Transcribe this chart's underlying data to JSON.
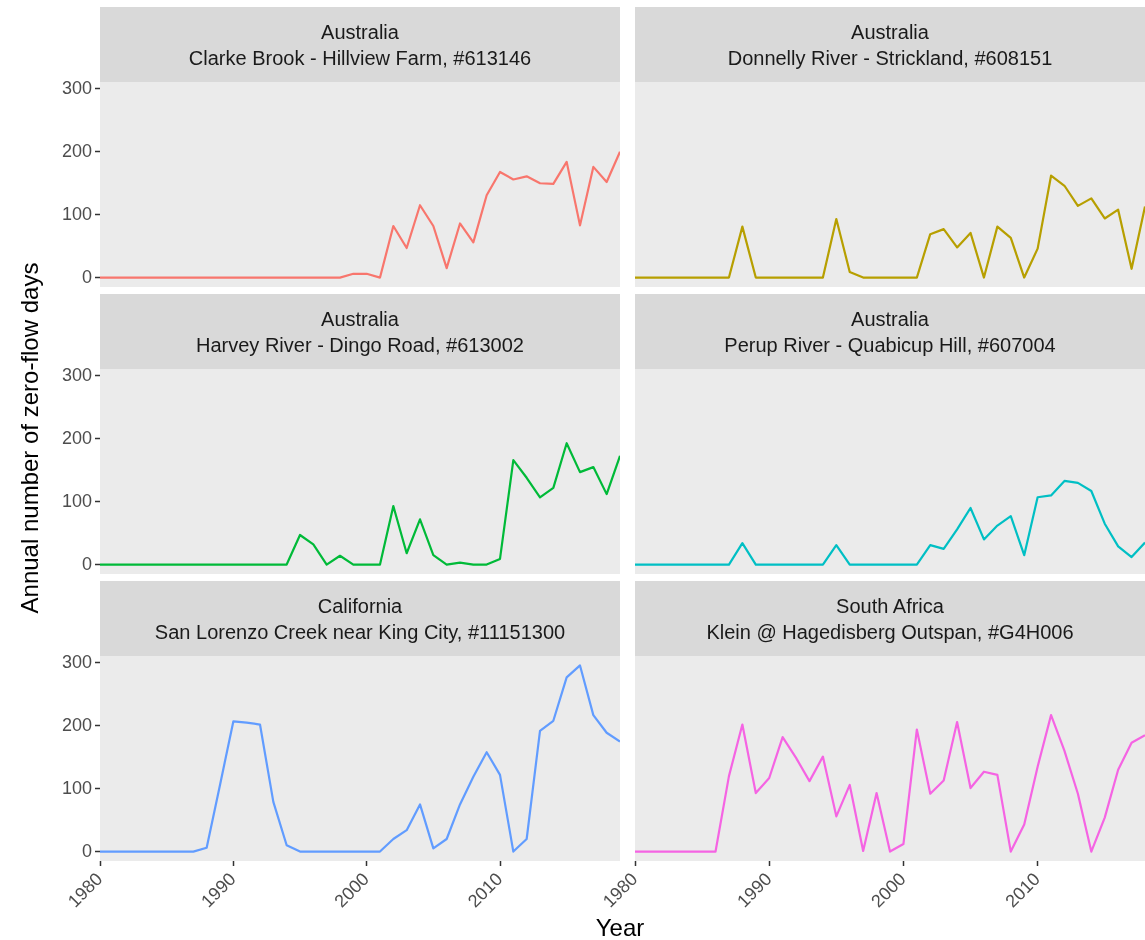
{
  "chart_data": [
    {
      "type": "line",
      "title": "Australia",
      "subtitle": "Clarke Brook - Hillview Farm, #613146",
      "x": [
        1980,
        1981,
        1982,
        1983,
        1984,
        1985,
        1986,
        1987,
        1988,
        1989,
        1990,
        1991,
        1992,
        1993,
        1994,
        1995,
        1996,
        1997,
        1998,
        1999,
        2000,
        2001,
        2002,
        2003,
        2004,
        2005,
        2006,
        2007,
        2008,
        2009,
        2010,
        2011,
        2012,
        2013,
        2014,
        2015,
        2016,
        2017,
        2018,
        2019
      ],
      "series": [
        {
          "color": "#f8766d",
          "values": [
            0,
            0,
            0,
            0,
            0,
            0,
            0,
            0,
            0,
            0,
            0,
            0,
            0,
            0,
            0,
            0,
            0,
            0,
            0,
            6,
            6,
            0,
            82,
            47,
            115,
            82,
            15,
            86,
            56,
            131,
            168,
            156,
            161,
            150,
            149,
            184,
            83,
            176,
            152,
            200
          ]
        }
      ],
      "xlim": [
        1980,
        2019
      ],
      "xticks": [
        1980,
        1990,
        2000,
        2010
      ],
      "ylim": [
        -15,
        311
      ],
      "yticks": [
        0,
        100,
        200,
        300
      ],
      "tick_labels": "y",
      "grid": false,
      "legend": false
    },
    {
      "type": "line",
      "title": "Australia",
      "subtitle": "Donnelly River - Strickland, #608151",
      "x": [
        1980,
        1981,
        1982,
        1983,
        1984,
        1985,
        1986,
        1987,
        1988,
        1989,
        1990,
        1991,
        1992,
        1993,
        1994,
        1995,
        1996,
        1997,
        1998,
        1999,
        2000,
        2001,
        2002,
        2003,
        2004,
        2005,
        2006,
        2007,
        2008,
        2009,
        2010,
        2011,
        2012,
        2013,
        2014,
        2015,
        2016,
        2017,
        2018
      ],
      "series": [
        {
          "color": "#b79f00",
          "values": [
            0,
            0,
            0,
            0,
            0,
            0,
            0,
            0,
            81,
            0,
            0,
            0,
            0,
            0,
            0,
            93,
            9,
            0,
            0,
            0,
            0,
            0,
            69,
            77,
            48,
            71,
            0,
            81,
            63,
            0,
            46,
            162,
            146,
            114,
            126,
            94,
            108,
            14,
            113
          ]
        }
      ],
      "xlim": [
        1980,
        2018
      ],
      "xticks": [
        1980,
        1990,
        2000,
        2010
      ],
      "ylim": [
        -15,
        311
      ],
      "yticks": [
        0,
        100,
        200,
        300
      ],
      "tick_labels": false,
      "grid": false,
      "legend": false
    },
    {
      "type": "line",
      "title": "Australia",
      "subtitle": "Harvey River - Dingo Road, #613002",
      "ylabel": "Annual number of zero-flow days",
      "x": [
        1980,
        1981,
        1982,
        1983,
        1984,
        1985,
        1986,
        1987,
        1988,
        1989,
        1990,
        1991,
        1992,
        1993,
        1994,
        1995,
        1996,
        1997,
        1998,
        1999,
        2000,
        2001,
        2002,
        2003,
        2004,
        2005,
        2006,
        2007,
        2008,
        2009,
        2010,
        2011,
        2012,
        2013,
        2014,
        2015,
        2016,
        2017,
        2018,
        2019
      ],
      "series": [
        {
          "color": "#00ba38",
          "values": [
            0,
            0,
            0,
            0,
            0,
            0,
            0,
            0,
            0,
            0,
            0,
            0,
            0,
            0,
            0,
            47,
            32,
            0,
            14,
            0,
            0,
            0,
            93,
            18,
            72,
            15,
            0,
            3,
            0,
            0,
            9,
            166,
            138,
            107,
            122,
            193,
            147,
            155,
            112,
            173
          ]
        }
      ],
      "xlim": [
        1980,
        2019
      ],
      "xticks": [
        1980,
        1990,
        2000,
        2010
      ],
      "ylim": [
        -15,
        311
      ],
      "yticks": [
        0,
        100,
        200,
        300
      ],
      "tick_labels": "y",
      "grid": false,
      "legend": false
    },
    {
      "type": "line",
      "title": "Australia",
      "subtitle": "Perup River - Quabicup Hill, #607004",
      "x": [
        1980,
        1981,
        1982,
        1983,
        1984,
        1985,
        1986,
        1987,
        1988,
        1989,
        1990,
        1991,
        1992,
        1993,
        1994,
        1995,
        1996,
        1997,
        1998,
        1999,
        2000,
        2001,
        2002,
        2003,
        2004,
        2005,
        2006,
        2007,
        2008,
        2009,
        2010,
        2011,
        2012,
        2013,
        2014,
        2015,
        2016,
        2017,
        2018
      ],
      "series": [
        {
          "color": "#00bfc4",
          "values": [
            0,
            0,
            0,
            0,
            0,
            0,
            0,
            0,
            34,
            0,
            0,
            0,
            0,
            0,
            0,
            31,
            0,
            0,
            0,
            0,
            0,
            0,
            31,
            25,
            56,
            90,
            40,
            62,
            77,
            15,
            107,
            110,
            133,
            130,
            117,
            65,
            29,
            12,
            35
          ]
        }
      ],
      "xlim": [
        1980,
        2018
      ],
      "xticks": [
        1980,
        1990,
        2000,
        2010
      ],
      "ylim": [
        -15,
        311
      ],
      "yticks": [
        0,
        100,
        200,
        300
      ],
      "tick_labels": false,
      "grid": false,
      "legend": false
    },
    {
      "type": "line",
      "title": "California",
      "subtitle": "San Lorenzo Creek near King City, #11151300",
      "xlabel": "Year",
      "x": [
        1980,
        1981,
        1982,
        1983,
        1984,
        1985,
        1986,
        1987,
        1988,
        1989,
        1990,
        1991,
        1992,
        1993,
        1994,
        1995,
        1996,
        1997,
        1998,
        1999,
        2000,
        2001,
        2002,
        2003,
        2004,
        2005,
        2006,
        2007,
        2008,
        2009,
        2010,
        2011,
        2012,
        2013,
        2014,
        2015,
        2016,
        2017,
        2018,
        2019
      ],
      "series": [
        {
          "color": "#619cff",
          "values": [
            0,
            0,
            0,
            0,
            0,
            0,
            0,
            0,
            6,
            106,
            207,
            205,
            202,
            79,
            10,
            0,
            0,
            0,
            0,
            0,
            0,
            0,
            20,
            34,
            75,
            5,
            20,
            75,
            119,
            158,
            122,
            0,
            20,
            192,
            208,
            277,
            296,
            217,
            189,
            175
          ]
        }
      ],
      "xlim": [
        1980,
        2019
      ],
      "xticks": [
        1980,
        1990,
        2000,
        2010
      ],
      "ylim": [
        -15,
        311
      ],
      "yticks": [
        0,
        100,
        200,
        300
      ],
      "grid": false,
      "legend": false
    },
    {
      "type": "line",
      "title": "South Africa",
      "subtitle": "Klein @ Hagedisberg Outspan, #G4H006",
      "x": [
        1980,
        1981,
        1982,
        1983,
        1984,
        1985,
        1986,
        1987,
        1988,
        1989,
        1990,
        1991,
        1992,
        1993,
        1994,
        1995,
        1996,
        1997,
        1998,
        1999,
        2000,
        2001,
        2002,
        2003,
        2004,
        2005,
        2006,
        2007,
        2008,
        2009,
        2010,
        2011,
        2012,
        2013,
        2014,
        2015,
        2016,
        2017,
        2018
      ],
      "series": [
        {
          "color": "#f564e3",
          "values": [
            0,
            0,
            0,
            0,
            0,
            0,
            0,
            120,
            202,
            93,
            117,
            182,
            149,
            112,
            151,
            56,
            106,
            1,
            93,
            0,
            12,
            194,
            92,
            113,
            206,
            101,
            127,
            122,
            0,
            43,
            135,
            217,
            160,
            92,
            0,
            54,
            130,
            173,
            185
          ]
        }
      ],
      "xlim": [
        1980,
        2018
      ],
      "xticks": [
        1980,
        1990,
        2000,
        2010
      ],
      "ylim": [
        -15,
        311
      ],
      "yticks": [
        0,
        100,
        200,
        300
      ],
      "tick_labels": "x",
      "grid": false,
      "legend": false
    }
  ]
}
